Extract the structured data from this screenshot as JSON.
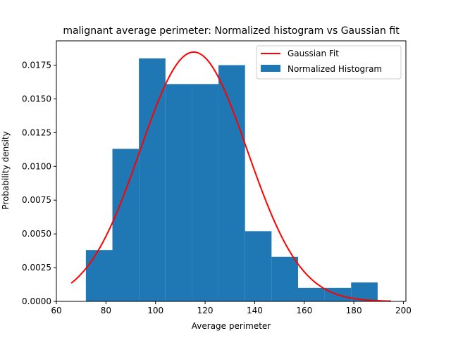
{
  "chart_data": {
    "type": "bar",
    "title": "malignant average perimeter: Normalized histogram vs Gaussian fit",
    "xlabel": "Average perimeter",
    "ylabel": "Probability density",
    "xlim": [
      60,
      201
    ],
    "ylim": [
      0,
      0.0193
    ],
    "xticks": [
      60,
      80,
      100,
      120,
      140,
      160,
      180,
      200
    ],
    "yticks": [
      0.0,
      0.0025,
      0.005,
      0.0075,
      0.01,
      0.0125,
      0.015,
      0.0175
    ],
    "ytick_labels": [
      "0.0000",
      "0.0025",
      "0.0050",
      "0.0075",
      "0.0100",
      "0.0125",
      "0.0150",
      "0.0175"
    ],
    "grid": false,
    "legend_position": "top-right",
    "series": [
      {
        "name": "Normalized Histogram",
        "kind": "histogram",
        "color": "#1f77b4",
        "bin_edges": [
          71.9,
          82.6,
          93.3,
          104.0,
          114.7,
          125.4,
          136.1,
          146.8,
          157.5,
          168.2,
          178.9,
          189.6
        ],
        "values": [
          0.0038,
          0.0113,
          0.018,
          0.0161,
          0.0161,
          0.0175,
          0.0052,
          0.0033,
          0.001,
          0.001,
          0.0014
        ]
      },
      {
        "name": "Gaussian Fit",
        "kind": "line",
        "color": "#ff0000",
        "mean": 115.4,
        "std": 21.6,
        "x_range": [
          66,
          195
        ]
      }
    ]
  }
}
